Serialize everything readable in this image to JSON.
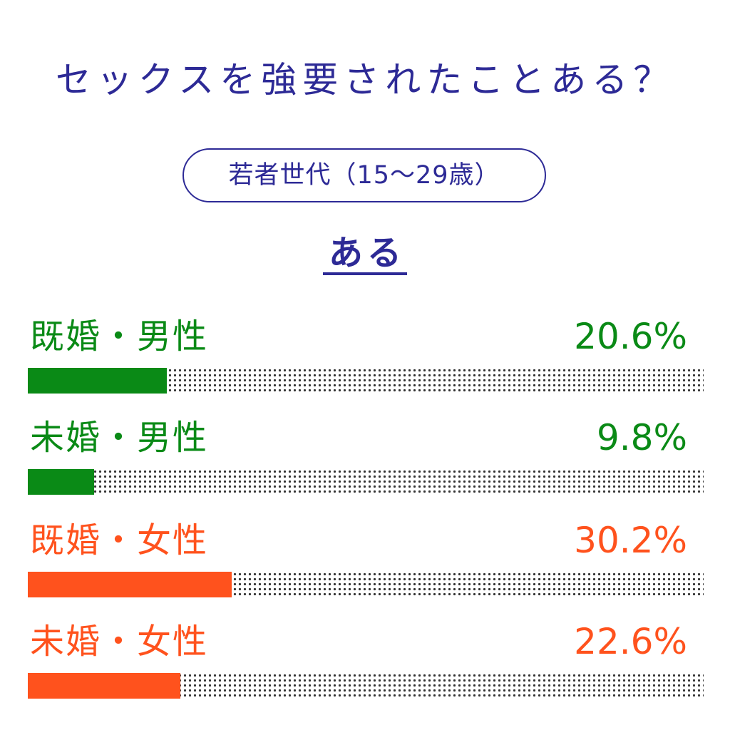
{
  "header": {
    "title": "セックスを強要されたことある？",
    "group_label": "若者世代（15〜29歳）",
    "subtitle": "ある"
  },
  "colors": {
    "title": "#2d2a96",
    "male": "#0a8a16",
    "female": "#ff521d",
    "track_dots": "#333333"
  },
  "chart_data": {
    "type": "bar",
    "orientation": "horizontal",
    "title": "セックスを強要されたことある？",
    "subtitle": "ある",
    "group": "若者世代（15〜29歳）",
    "unit": "%",
    "xlim": [
      0,
      100
    ],
    "categories": [
      "既婚・男性",
      "未婚・男性",
      "既婚・女性",
      "未婚・女性"
    ],
    "values": [
      20.6,
      9.8,
      30.2,
      22.6
    ],
    "value_labels": [
      "20.6%",
      "9.8%",
      "30.2%",
      "22.6%"
    ],
    "bar_colors": [
      "#0a8a16",
      "#0a8a16",
      "#ff521d",
      "#ff521d"
    ]
  }
}
